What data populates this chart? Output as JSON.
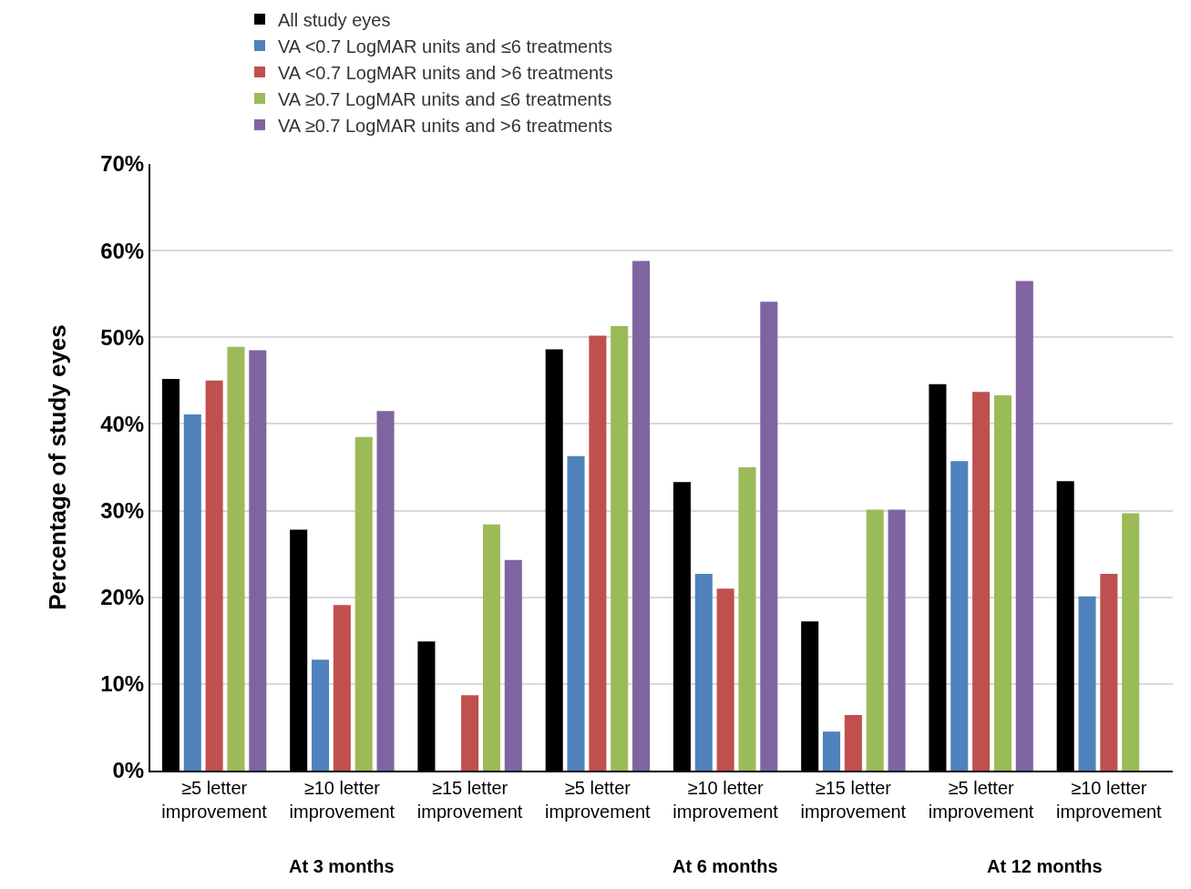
{
  "chart_data": {
    "type": "bar",
    "ylabel": "Percentage of study eyes",
    "categories": [
      "≥5 letter improvement",
      "≥10 letter improvement",
      "≥15 letter improvement",
      "≥5 letter improvement",
      "≥10 letter improvement",
      "≥15 letter improvement",
      "≥5 letter improvement",
      "≥10 letter improvement"
    ],
    "series": [
      {
        "name": "All study eyes",
        "color": "#000000",
        "values": [
          45.2,
          27.8,
          14.9,
          48.6,
          33.3,
          17.2,
          44.6,
          33.4
        ]
      },
      {
        "name": "VA <0.7 LogMAR units and ≤6 treatments",
        "color": "#4f81bd",
        "values": [
          41.1,
          12.8,
          null,
          36.3,
          22.7,
          4.5,
          35.7,
          20.1
        ]
      },
      {
        "name": "VA <0.7 LogMAR units and >6 treatments",
        "color": "#c0504d",
        "values": [
          45.0,
          19.1,
          8.7,
          50.2,
          21.0,
          6.4,
          43.7,
          22.7
        ]
      },
      {
        "name": "VA ≥0.7 LogMAR units and ≤6 treatments",
        "color": "#9bbb59",
        "values": [
          48.9,
          38.5,
          28.4,
          51.3,
          35.0,
          30.1,
          43.3,
          29.7
        ]
      },
      {
        "name": "VA ≥0.7 LogMAR units and >6 treatments",
        "color": "#8064a2",
        "values": [
          48.5,
          41.5,
          24.3,
          58.8,
          54.1,
          30.1,
          56.5,
          null
        ]
      }
    ],
    "ylim": [
      0,
      70
    ],
    "yticks": [
      {
        "value": 0,
        "label": "0%"
      },
      {
        "value": 10,
        "label": "10%"
      },
      {
        "value": 20,
        "label": "20%"
      },
      {
        "value": 30,
        "label": "30%"
      },
      {
        "value": 40,
        "label": "40%"
      },
      {
        "value": 50,
        "label": "50%"
      },
      {
        "value": 60,
        "label": "60%"
      },
      {
        "value": 70,
        "label": "70%"
      }
    ],
    "grid": "y",
    "legend": "top",
    "annotations": [
      "At 3 months",
      "At 6 months",
      "At 12 months"
    ]
  }
}
